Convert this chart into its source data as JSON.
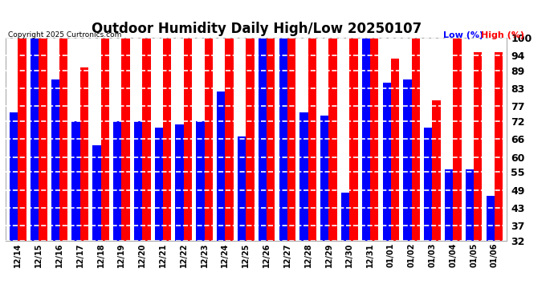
{
  "title": "Outdoor Humidity Daily High/Low 20250107",
  "copyright": "Copyright 2025 Curtronics.com",
  "legend_low": "Low (%)",
  "legend_high": "High (%)",
  "low_color": "#0000ff",
  "high_color": "#ff0000",
  "background_color": "#ffffff",
  "plot_bg_color": "#ffffff",
  "ymin": 32,
  "ymax": 100,
  "yticks": [
    32,
    37,
    43,
    49,
    55,
    60,
    66,
    72,
    77,
    83,
    89,
    94,
    100
  ],
  "dates": [
    "12/14",
    "12/15",
    "12/16",
    "12/17",
    "12/18",
    "12/19",
    "12/20",
    "12/21",
    "12/22",
    "12/23",
    "12/24",
    "12/25",
    "12/26",
    "12/27",
    "12/28",
    "12/29",
    "12/30",
    "12/31",
    "01/01",
    "01/02",
    "01/03",
    "01/04",
    "01/05",
    "01/06"
  ],
  "high_values": [
    100,
    100,
    100,
    90,
    100,
    100,
    100,
    100,
    100,
    100,
    100,
    100,
    100,
    100,
    100,
    100,
    100,
    100,
    93,
    100,
    79,
    100,
    95,
    95
  ],
  "low_values": [
    75,
    100,
    86,
    72,
    64,
    72,
    72,
    70,
    71,
    72,
    82,
    67,
    100,
    100,
    75,
    74,
    48,
    100,
    85,
    86,
    70,
    56,
    56,
    47
  ]
}
